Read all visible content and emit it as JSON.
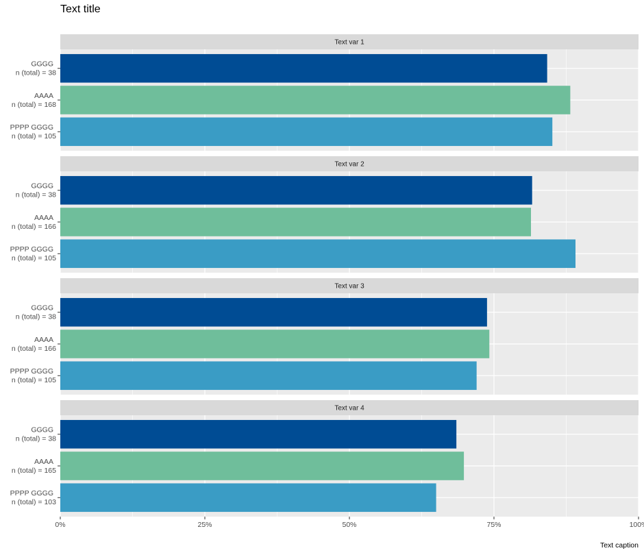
{
  "title": "Text title",
  "caption": "Text caption",
  "chart_data": [
    {
      "type": "bar",
      "title": "Text var 1",
      "orientation": "horizontal",
      "categories": [
        "GGGG",
        "AAAA",
        "PPPP GGGG"
      ],
      "sublabels": [
        "n (total) = 38",
        "n (total) = 168",
        "n (total) = 105"
      ],
      "values": [
        84.2,
        88.2,
        85.1
      ],
      "colors": [
        "#004c94",
        "#6fbe9b",
        "#3a9cc5"
      ],
      "xlim": [
        0,
        100
      ],
      "xticks": [
        {
          "value": 0,
          "label": "0%"
        },
        {
          "value": 25,
          "label": "25%"
        },
        {
          "value": 50,
          "label": "50%"
        },
        {
          "value": 75,
          "label": "75%"
        },
        {
          "value": 100,
          "label": "100%"
        }
      ],
      "grid": true
    },
    {
      "type": "bar",
      "title": "Text var 2",
      "orientation": "horizontal",
      "categories": [
        "GGGG",
        "AAAA",
        "PPPP GGGG"
      ],
      "sublabels": [
        "n (total) = 38",
        "n (total) = 166",
        "n (total) = 105"
      ],
      "values": [
        81.6,
        81.4,
        89.1
      ],
      "colors": [
        "#004c94",
        "#6fbe9b",
        "#3a9cc5"
      ],
      "xlim": [
        0,
        100
      ],
      "xticks": [
        {
          "value": 0,
          "label": "0%"
        },
        {
          "value": 25,
          "label": "25%"
        },
        {
          "value": 50,
          "label": "50%"
        },
        {
          "value": 75,
          "label": "75%"
        },
        {
          "value": 100,
          "label": "100%"
        }
      ],
      "grid": true
    },
    {
      "type": "bar",
      "title": "Text var 3",
      "orientation": "horizontal",
      "categories": [
        "GGGG",
        "AAAA",
        "PPPP GGGG"
      ],
      "sublabels": [
        "n (total) = 38",
        "n (total) = 166",
        "n (total) = 105"
      ],
      "values": [
        73.8,
        74.2,
        72.0
      ],
      "colors": [
        "#004c94",
        "#6fbe9b",
        "#3a9cc5"
      ],
      "xlim": [
        0,
        100
      ],
      "xticks": [
        {
          "value": 0,
          "label": "0%"
        },
        {
          "value": 25,
          "label": "25%"
        },
        {
          "value": 50,
          "label": "50%"
        },
        {
          "value": 75,
          "label": "75%"
        },
        {
          "value": 100,
          "label": "100%"
        }
      ],
      "grid": true
    },
    {
      "type": "bar",
      "title": "Text var 4",
      "orientation": "horizontal",
      "categories": [
        "GGGG",
        "AAAA",
        "PPPP GGGG"
      ],
      "sublabels": [
        "n (total) = 38",
        "n (total) = 165",
        "n (total) = 103"
      ],
      "values": [
        68.5,
        69.8,
        65.0
      ],
      "colors": [
        "#004c94",
        "#6fbe9b",
        "#3a9cc5"
      ],
      "xlim": [
        0,
        100
      ],
      "xticks": [
        {
          "value": 0,
          "label": "0%"
        },
        {
          "value": 25,
          "label": "25%"
        },
        {
          "value": 50,
          "label": "50%"
        },
        {
          "value": 75,
          "label": "75%"
        },
        {
          "value": 100,
          "label": "100%"
        }
      ],
      "grid": true
    }
  ]
}
